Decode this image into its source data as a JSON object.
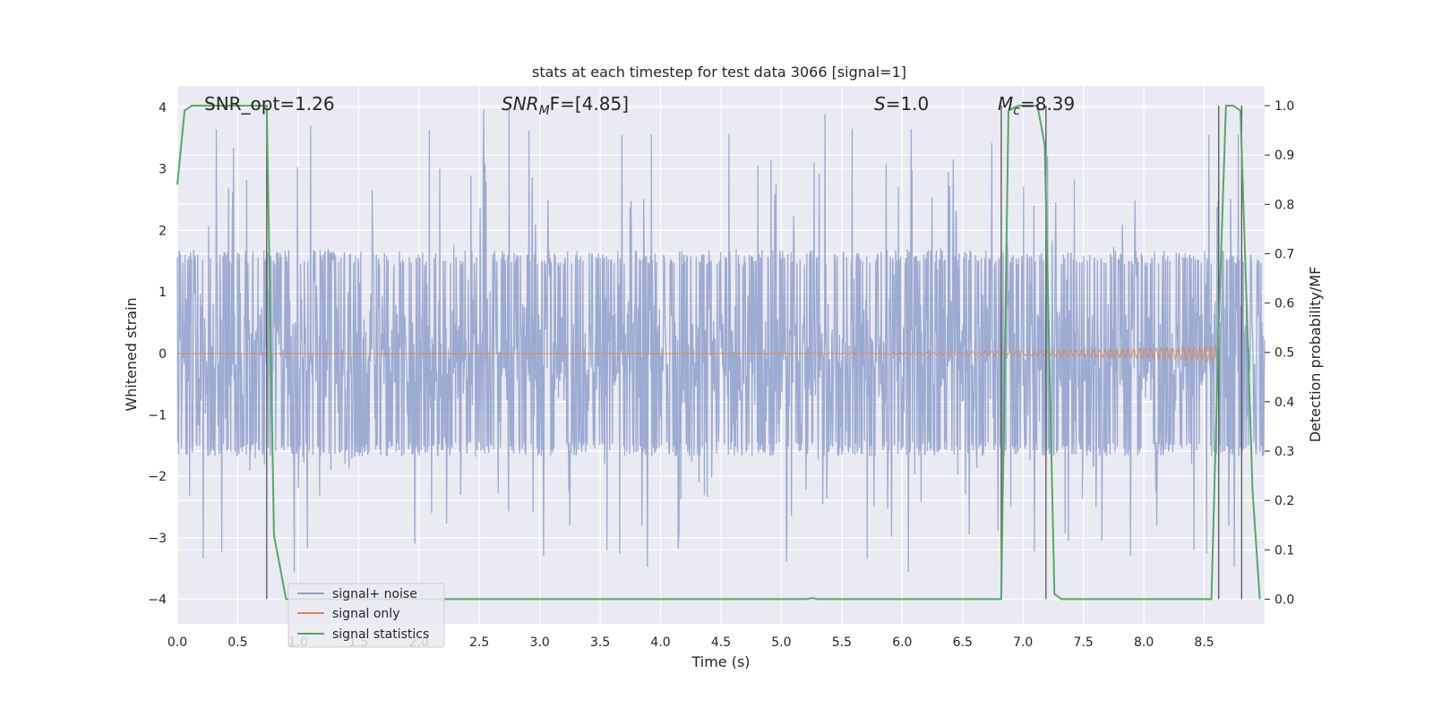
{
  "chart_data": {
    "type": "line",
    "title": "stats at each timestep for test data 3066 [signal=1]",
    "xlabel": "Time (s)",
    "ylabel_left": "Whitened strain",
    "ylabel_right": "Detection probability/MF",
    "xlim": [
      0.0,
      9.0
    ],
    "ylim_left": [
      -4.4,
      4.35
    ],
    "ylim_right": [
      -0.05,
      1.04
    ],
    "x_ticks": [
      "0.0",
      "0.5",
      "1.0",
      "1.5",
      "2.0",
      "2.5",
      "3.0",
      "3.5",
      "4.0",
      "4.5",
      "5.0",
      "5.5",
      "6.0",
      "6.5",
      "7.0",
      "7.5",
      "8.0",
      "8.5"
    ],
    "y_left_ticks": [
      "4",
      "3",
      "2",
      "1",
      "0",
      "−1",
      "−2",
      "−3",
      "−4"
    ],
    "y_right_ticks": [
      "1.0",
      "0.9",
      "0.8",
      "0.7",
      "0.6",
      "0.5",
      "0.4",
      "0.3",
      "0.2",
      "0.1",
      "0.0"
    ],
    "grid": true,
    "legend_placement": "lower-left",
    "annotations": [
      {
        "text": "SNR_opt=1.26",
        "x": 0.2
      },
      {
        "text": "SNR",
        "sub": "M",
        "rest": "F=[4.85]",
        "x": 2.6
      },
      {
        "text": "S",
        "rest": "=1.0",
        "x": 5.6
      },
      {
        "text": "M",
        "sub": "c",
        "rest": "=8.39",
        "x": 6.6
      }
    ],
    "series": [
      {
        "name": "signal+ noise",
        "color": "#8da0cb",
        "kind": "noise",
        "typical_band": [
          -1.6,
          1.6
        ],
        "peak_range": [
          -3.6,
          4.0
        ]
      },
      {
        "name": "signal only",
        "color": "#dd8452",
        "kind": "chirp",
        "peak_amplitude": 0.12
      },
      {
        "name": "signal statistics",
        "color": "#55a868",
        "x": [
          0.0,
          0.06,
          0.12,
          0.7,
          0.74,
          0.8,
          0.9,
          1.0,
          5.2,
          5.26,
          5.3,
          6.82,
          6.88,
          6.96,
          7.12,
          7.18,
          7.26,
          7.32,
          8.56,
          8.62,
          8.68,
          8.74,
          8.8,
          8.9,
          8.96
        ],
        "y": [
          0.84,
          0.99,
          1.0,
          1.0,
          1.0,
          0.13,
          0.0,
          0.0,
          0.0,
          0.002,
          0.0,
          0.0,
          0.99,
          1.0,
          1.0,
          0.92,
          0.01,
          0.0,
          0.0,
          0.55,
          1.0,
          1.0,
          0.99,
          0.22,
          0.0
        ]
      }
    ],
    "vertical_lines": [
      0.74,
      6.82,
      7.19,
      8.62,
      8.81
    ],
    "vline_color": "#555555"
  }
}
